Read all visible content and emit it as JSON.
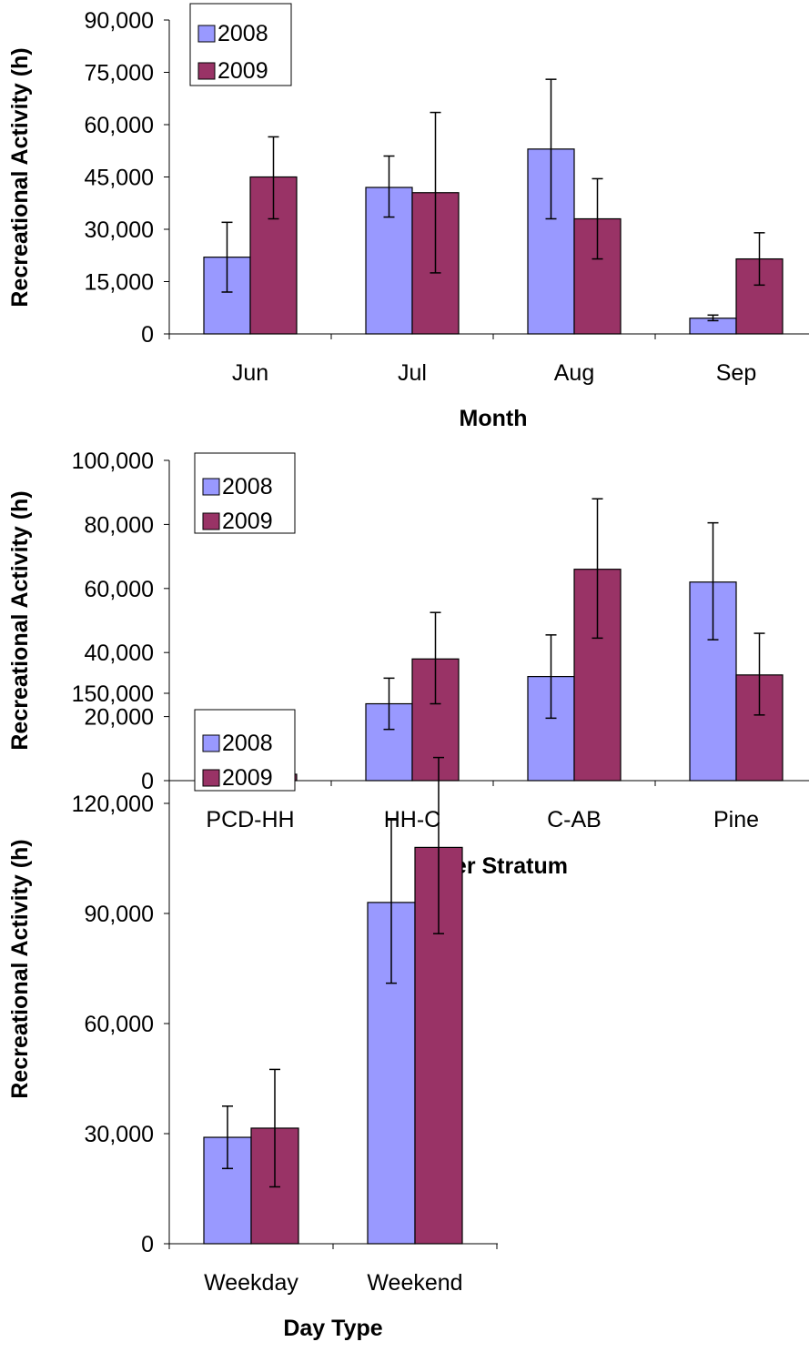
{
  "colors": {
    "series_2008": "#9999FF",
    "series_2009": "#993366",
    "stroke": "#000000"
  },
  "chart_data": [
    {
      "type": "bar",
      "xlabel": "Month",
      "ylabel": "Recreational Activity (h)",
      "ylim": [
        0,
        90000
      ],
      "yticks": [
        "0",
        "15,000",
        "30,000",
        "45,000",
        "60,000",
        "75,000",
        "90,000"
      ],
      "categories": [
        "Jun",
        "Jul",
        "Aug",
        "Sep"
      ],
      "legend": "top-left",
      "series": [
        {
          "name": "2008",
          "values": [
            22000,
            42000,
            53000,
            4500
          ],
          "error_low": [
            12000,
            33500,
            33000,
            3800
          ],
          "error_high": [
            32000,
            51000,
            73000,
            5400
          ]
        },
        {
          "name": "2009",
          "values": [
            45000,
            40500,
            33000,
            21500
          ],
          "error_low": [
            33000,
            17500,
            21500,
            14000
          ],
          "error_high": [
            56500,
            63500,
            44500,
            29000
          ]
        }
      ]
    },
    {
      "type": "bar",
      "xlabel": "River Stratum",
      "ylabel": "Recreational Activity (h)",
      "ylim": [
        0,
        100000
      ],
      "yticks": [
        "0",
        "20,000",
        "40,000",
        "60,000",
        "80,000",
        "100,000"
      ],
      "categories": [
        "PCD-HH",
        "HH-C",
        "C-AB",
        "Pine"
      ],
      "legend": "top-left",
      "series": [
        {
          "name": "2008",
          "values": [
            3500,
            24000,
            32500,
            62000
          ],
          "error_low": [
            1500,
            16000,
            19500,
            44000
          ],
          "error_high": [
            5800,
            32000,
            45500,
            80500
          ]
        },
        {
          "name": "2009",
          "values": [
            2000,
            38000,
            66000,
            33000
          ],
          "error_low": [
            1000,
            24000,
            44500,
            20500
          ],
          "error_high": [
            3000,
            52500,
            88000,
            46000
          ]
        }
      ]
    },
    {
      "type": "bar",
      "xlabel": "Day Type",
      "ylabel": "Recreational Activity (h)",
      "ylim": [
        0,
        150000
      ],
      "yticks": [
        "0",
        "30,000",
        "60,000",
        "90,000",
        "120,000",
        "150,000"
      ],
      "categories": [
        "Weekday",
        "Weekend"
      ],
      "legend": "top-left",
      "series": [
        {
          "name": "2008",
          "values": [
            29000,
            93000
          ],
          "error_low": [
            20500,
            71000
          ],
          "error_high": [
            37500,
            115500
          ]
        },
        {
          "name": "2009",
          "values": [
            31500,
            108000
          ],
          "error_low": [
            15500,
            84500
          ],
          "error_high": [
            47500,
            132500
          ]
        }
      ]
    }
  ]
}
